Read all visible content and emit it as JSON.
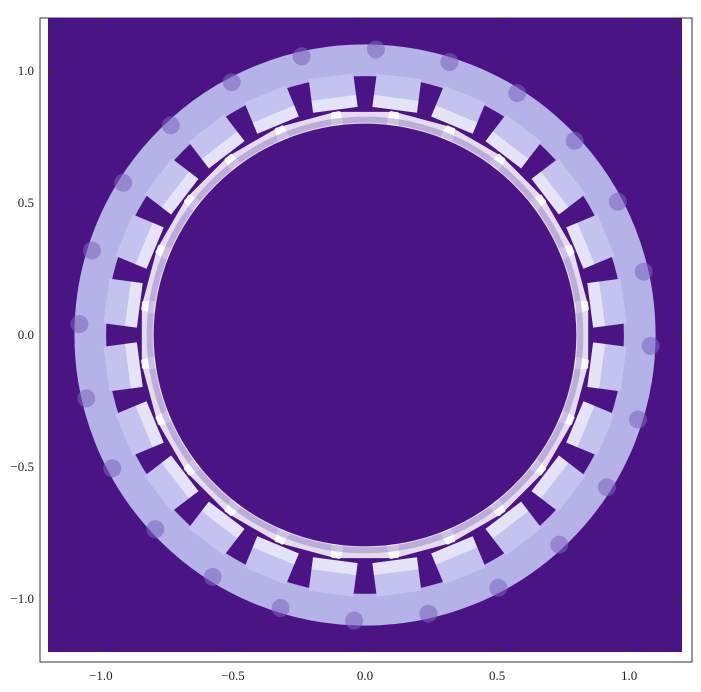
{
  "chart_data": {
    "type": "heatmap",
    "title": "",
    "xlabel": "",
    "ylabel": "",
    "xlim": [
      -1.2,
      1.2
    ],
    "ylim": [
      -1.2,
      1.2
    ],
    "grid": false,
    "legend": "none",
    "x_ticks": [
      {
        "value": -1.0,
        "label": "−1.0"
      },
      {
        "value": -0.5,
        "label": "−0.5"
      },
      {
        "value": 0.0,
        "label": "0.0"
      },
      {
        "value": 0.5,
        "label": "0.5"
      },
      {
        "value": 1.0,
        "label": "1.0"
      }
    ],
    "y_ticks": [
      {
        "value": 1.0,
        "label": "1.0"
      },
      {
        "value": 0.5,
        "label": "0.5"
      },
      {
        "value": 0.0,
        "label": "0.0"
      },
      {
        "value": -0.5,
        "label": "−0.5"
      },
      {
        "value": -1.0,
        "label": "−1.0"
      }
    ],
    "colors": {
      "background": "#4a1485",
      "stator_ring": "#b4b2e6",
      "tooth": "#c4c2ee",
      "tooth_hot": "#ffffff",
      "rotor_shoe": "#ffffff",
      "tooth_root": "#7a64bc"
    },
    "geometry": {
      "outer_yoke_radius": 1.1,
      "inner_yoke_radius": 0.98,
      "tooth_inner_radius": 0.86,
      "tooth_half_width": 0.085,
      "tooth_count": 24,
      "shoe_inner_radius": 0.8,
      "shoe_outer_radius": 0.86,
      "rotor_radius": 0.8
    }
  }
}
